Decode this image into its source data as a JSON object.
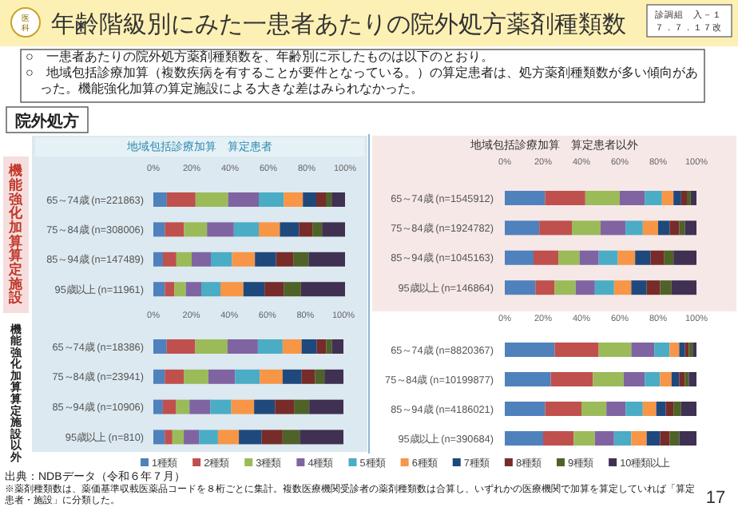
{
  "chart_data": [
    {
      "type": "bar",
      "orientation": "horizontal",
      "stacked": true,
      "title": "地域包括診療加算　算定患者",
      "ylabel": "機能強化加算算定施設",
      "categories": [
        "65～74歳 (n=221863)",
        "75～84歳 (n=308006)",
        "85～94歳 (n=147489)",
        "95歳以上 (n=11961)"
      ],
      "xlim": [
        0,
        100
      ],
      "xticks": [
        {
          "value": 0,
          "label": "0%"
        },
        {
          "value": 20,
          "label": "20%"
        },
        {
          "value": 40,
          "label": "40%"
        },
        {
          "value": 60,
          "label": "60%"
        },
        {
          "value": 80,
          "label": "80%"
        },
        {
          "value": 100,
          "label": "100%"
        }
      ],
      "annotations": [
        "医科",
        "年齢階級別にみた一患者あたりの院外処方薬剤種類数",
        "診調組　入－１",
        "７．７．１７改",
        "○　一患者あたりの院外処方薬剤種類数を、年齢別に示したものは以下のとおり。",
        "○　地域包括診療加算（複数疾病を有することが要件となっている。）の算定患者は、処方薬剤種類数が多い傾向があった。機能強化加算の算定施設による大きな差はみられなかった。",
        "院外処方"
      ],
      "series": [
        {
          "color": "#4f81bd",
          "values": [
            7,
            6,
            5,
            6
          ]
        },
        {
          "color": "#c0504d",
          "values": [
            15,
            10,
            7,
            5
          ]
        },
        {
          "color": "#9bbb59",
          "values": [
            17,
            12,
            8,
            6
          ]
        },
        {
          "color": "#8064a2",
          "values": [
            16,
            14,
            10,
            8
          ]
        },
        {
          "color": "#4bacc6",
          "values": [
            13,
            13,
            11,
            10
          ]
        },
        {
          "color": "#f79646",
          "values": [
            10,
            11,
            12,
            12
          ]
        },
        {
          "color": "#1f497d",
          "values": [
            7,
            10,
            11,
            11
          ]
        },
        {
          "color": "#772c2a",
          "values": [
            5,
            7,
            9,
            10
          ]
        },
        {
          "color": "#4f6228",
          "values": [
            3,
            5,
            8,
            9
          ]
        },
        {
          "color": "#403152",
          "values": [
            7,
            12,
            19,
            23
          ]
        }
      ]
    },
    {
      "type": "bar",
      "orientation": "horizontal",
      "stacked": true,
      "title": "地域包括診療加算　算定患者以外",
      "categories": [
        "65～74歳 (n=1545912)",
        "75～84歳 (n=1924782)",
        "85～94歳 (n=1045163)",
        "95歳以上 (n=146864)"
      ],
      "xlim": [
        0,
        100
      ],
      "xticks": [
        {
          "value": 0,
          "label": "0%"
        },
        {
          "value": 20,
          "label": "20%"
        },
        {
          "value": 40,
          "label": "40%"
        },
        {
          "value": 60,
          "label": "60%"
        },
        {
          "value": 80,
          "label": "80%"
        },
        {
          "value": 100,
          "label": "100%"
        }
      ],
      "series": [
        {
          "color": "#4f81bd",
          "values": [
            21,
            18,
            15,
            16
          ]
        },
        {
          "color": "#c0504d",
          "values": [
            21,
            17,
            13,
            10
          ]
        },
        {
          "color": "#9bbb59",
          "values": [
            18,
            15,
            11,
            11
          ]
        },
        {
          "color": "#8064a2",
          "values": [
            13,
            13,
            10,
            10
          ]
        },
        {
          "color": "#4bacc6",
          "values": [
            9,
            9,
            10,
            10
          ]
        },
        {
          "color": "#f79646",
          "values": [
            6,
            8,
            9,
            9
          ]
        },
        {
          "color": "#1f497d",
          "values": [
            4,
            6,
            8,
            8
          ]
        },
        {
          "color": "#772c2a",
          "values": [
            3,
            5,
            7,
            7
          ]
        },
        {
          "color": "#4f6228",
          "values": [
            2,
            3,
            5,
            6
          ]
        },
        {
          "color": "#403152",
          "values": [
            3,
            6,
            12,
            13
          ]
        }
      ]
    },
    {
      "type": "bar",
      "orientation": "horizontal",
      "stacked": true,
      "ylabel": "機能強化加算算定施設以外",
      "legend": "bottom",
      "categories": [
        "65～74歳 (n=18386)",
        "75～84歳 (n=23941)",
        "85～94歳 (n=10906)",
        "95歳以上 (n=810)"
      ],
      "xlim": [
        0,
        100
      ],
      "xticks": [
        {
          "value": 0,
          "label": "0%"
        },
        {
          "value": 20,
          "label": "20%"
        },
        {
          "value": 40,
          "label": "40%"
        },
        {
          "value": 60,
          "label": "60%"
        },
        {
          "value": 80,
          "label": "80%"
        },
        {
          "value": 100,
          "label": "100%"
        }
      ],
      "annotations": [
        "出典：NDBデータ（令和６年７月）",
        "※薬剤種類数は、薬価基準収載医薬品コードを８桁ごとに集計。複数医療機関受診者の薬剤種類数は合算し、いずれかの医療機関で加算を算定していれば「算定患者・施設」に分類した。",
        "17"
      ],
      "series": [
        {
          "name": "1種類",
          "color": "#4f81bd",
          "values": [
            7,
            6,
            5,
            6
          ]
        },
        {
          "name": "2種類",
          "color": "#c0504d",
          "values": [
            15,
            10,
            7,
            4
          ]
        },
        {
          "name": "3種類",
          "color": "#9bbb59",
          "values": [
            17,
            13,
            7,
            6
          ]
        },
        {
          "name": "4種類",
          "color": "#8064a2",
          "values": [
            16,
            14,
            11,
            8
          ]
        },
        {
          "name": "5種類",
          "color": "#4bacc6",
          "values": [
            13,
            13,
            11,
            10
          ]
        },
        {
          "name": "6種類",
          "color": "#f79646",
          "values": [
            10,
            12,
            12,
            11
          ]
        },
        {
          "name": "7種類",
          "color": "#1f497d",
          "values": [
            8,
            10,
            11,
            12
          ]
        },
        {
          "name": "8種類",
          "color": "#772c2a",
          "values": [
            5,
            7,
            10,
            11
          ]
        },
        {
          "name": "9種類",
          "color": "#4f6228",
          "values": [
            3,
            5,
            8,
            9
          ]
        },
        {
          "name": "10種類以上",
          "color": "#403152",
          "values": [
            6,
            10,
            18,
            23
          ]
        }
      ]
    },
    {
      "type": "bar",
      "orientation": "horizontal",
      "stacked": true,
      "categories": [
        "65～74歳 (n=8820367)",
        "75～84歳 (n=10199877)",
        "85～94歳 (n=4186021)",
        "95歳以上 (n=390684)"
      ],
      "xlim": [
        0,
        100
      ],
      "xticks": [
        {
          "value": 0,
          "label": "0%"
        },
        {
          "value": 20,
          "label": "20%"
        },
        {
          "value": 40,
          "label": "40%"
        },
        {
          "value": 60,
          "label": "60%"
        },
        {
          "value": 80,
          "label": "80%"
        },
        {
          "value": 100,
          "label": "100%"
        }
      ],
      "series": [
        {
          "color": "#4f81bd",
          "values": [
            26,
            24,
            21,
            20
          ]
        },
        {
          "color": "#c0504d",
          "values": [
            23,
            22,
            19,
            16
          ]
        },
        {
          "color": "#9bbb59",
          "values": [
            17,
            16,
            13,
            11
          ]
        },
        {
          "color": "#8064a2",
          "values": [
            12,
            11,
            10,
            10
          ]
        },
        {
          "color": "#4bacc6",
          "values": [
            8,
            8,
            9,
            9
          ]
        },
        {
          "color": "#f79646",
          "values": [
            5,
            6,
            7,
            8
          ]
        },
        {
          "color": "#1f497d",
          "values": [
            3,
            4,
            5,
            7
          ]
        },
        {
          "color": "#772c2a",
          "values": [
            2,
            3,
            4,
            5
          ]
        },
        {
          "color": "#4f6228",
          "values": [
            2,
            2,
            4,
            5
          ]
        },
        {
          "color": "#403152",
          "values": [
            2,
            4,
            8,
            9
          ]
        }
      ]
    }
  ]
}
